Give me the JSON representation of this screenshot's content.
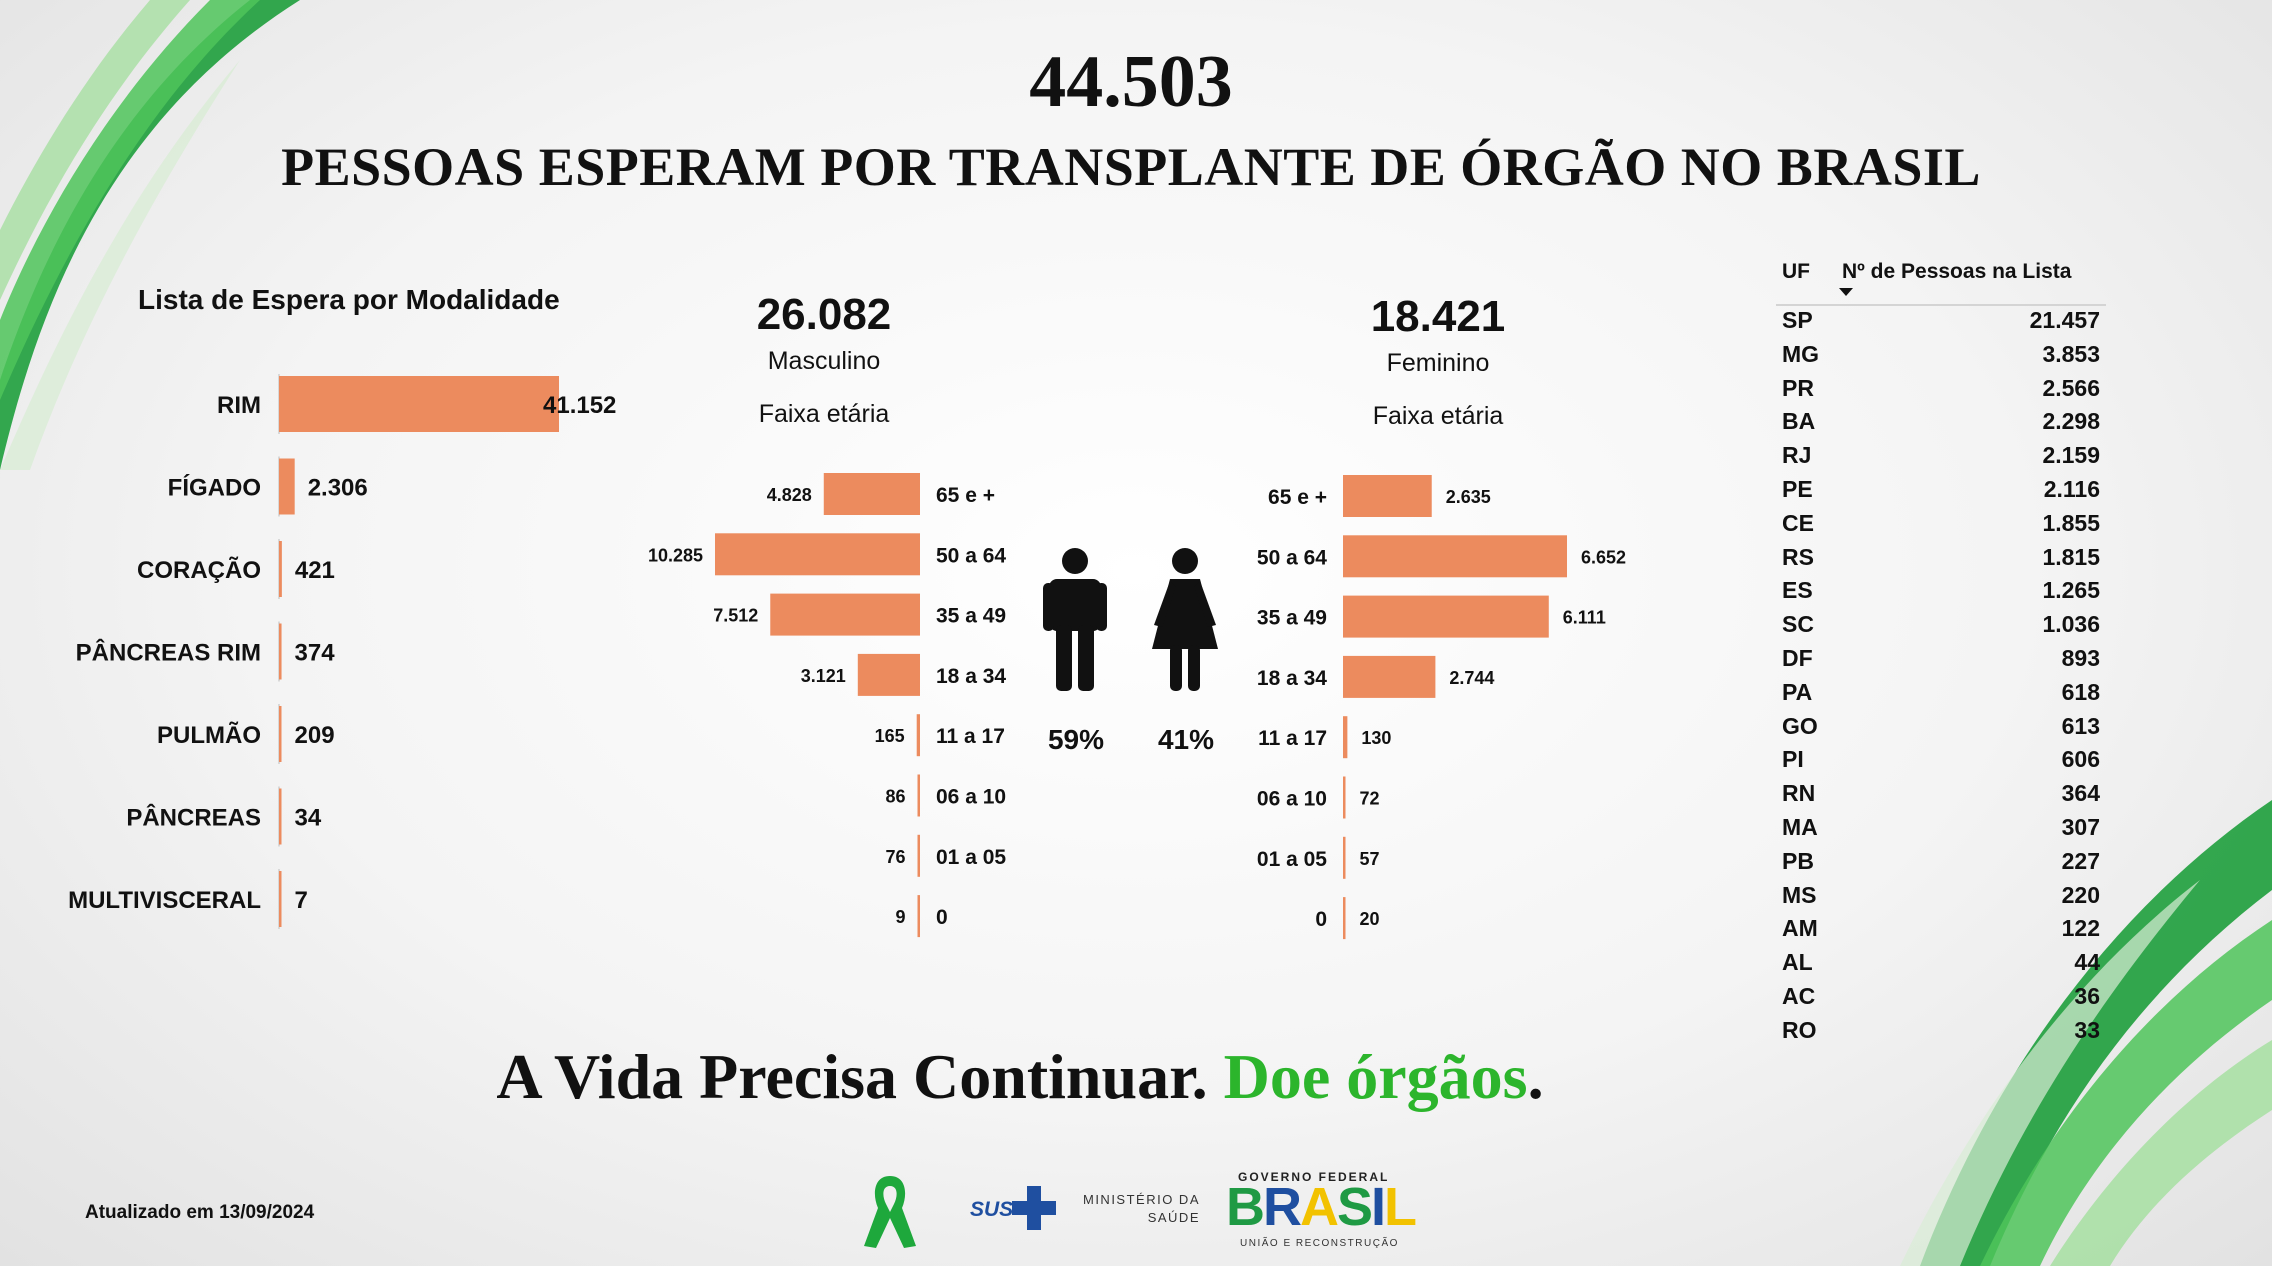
{
  "header": {
    "total": "44.503",
    "subtitle": "PESSOAS ESPERAM POR TRANSPLANTE DE ÓRGÃO NO BRASIL"
  },
  "modalidade": {
    "title": "Lista de Espera por Modalidade"
  },
  "masculino": {
    "total": "26.082",
    "label": "Masculino",
    "faixa_label": "Faixa etária",
    "percent": "59%"
  },
  "feminino": {
    "total": "18.421",
    "label": "Feminino",
    "faixa_label": "Faixa etária",
    "percent": "41%"
  },
  "uf_table": {
    "col_uf": "UF",
    "col_count": "Nº de Pessoas na Lista"
  },
  "footer": {
    "motto_main": "A Vida Precisa Continuar.",
    "motto_green": "Doe órgãos",
    "motto_end": ".",
    "updated": "Atualizado em 13/09/2024",
    "sus": "SUS",
    "ministerio_line1": "MINISTÉRIO DA",
    "ministerio_line2": "SAÚDE",
    "gov_line1": "GOVERNO FEDERAL",
    "gov_brasil": "BRASIL",
    "gov_line2": "UNIÃO E RECONSTRUÇÃO"
  },
  "colors": {
    "bar": "#ec8b5e",
    "accent_green": "#2cb52c",
    "dark_green": "#1d8a3a",
    "text": "#111111"
  },
  "icons": {
    "male": "man-icon",
    "female": "woman-icon",
    "ribbon": "green-ribbon-icon",
    "sus_cross": "sus-cross-icon"
  },
  "chart_data": [
    {
      "type": "bar",
      "orientation": "horizontal",
      "title": "Lista de Espera por Modalidade",
      "categories": [
        "RIM",
        "FÍGADO",
        "CORAÇÃO",
        "PÂNCREAS RIM",
        "PULMÃO",
        "PÂNCREAS",
        "MULTIVISCERAL"
      ],
      "values": [
        41152,
        2306,
        421,
        374,
        209,
        34,
        7
      ],
      "labels": [
        "41.152",
        "2.306",
        "421",
        "374",
        "209",
        "34",
        "7"
      ]
    },
    {
      "type": "bar",
      "orientation": "horizontal",
      "title": "Masculino",
      "categories": [
        "65 e +",
        "50 a 64",
        "35 a 49",
        "18 a 34",
        "11 a 17",
        "06 a 10",
        "01 a 05",
        "0"
      ],
      "values": [
        4828,
        10285,
        7512,
        3121,
        165,
        86,
        76,
        9
      ],
      "labels": [
        "4.828",
        "10.285",
        "7.512",
        "3.121",
        "165",
        "86",
        "76",
        "9"
      ]
    },
    {
      "type": "bar",
      "orientation": "horizontal",
      "title": "Feminino",
      "categories": [
        "65 e +",
        "50 a 64",
        "35 a 49",
        "18 a 34",
        "11 a 17",
        "06 a 10",
        "01 a 05",
        "0"
      ],
      "values": [
        2635,
        6652,
        6111,
        2744,
        130,
        72,
        57,
        20
      ],
      "labels": [
        "2.635",
        "6.652",
        "6.111",
        "2.744",
        "130",
        "72",
        "57",
        "20"
      ]
    },
    {
      "type": "table",
      "title": "",
      "columns": [
        "UF",
        "Nº de Pessoas na Lista"
      ],
      "rows": [
        [
          "SP",
          "21.457"
        ],
        [
          "MG",
          "3.853"
        ],
        [
          "PR",
          "2.566"
        ],
        [
          "BA",
          "2.298"
        ],
        [
          "RJ",
          "2.159"
        ],
        [
          "PE",
          "2.116"
        ],
        [
          "CE",
          "1.855"
        ],
        [
          "RS",
          "1.815"
        ],
        [
          "ES",
          "1.265"
        ],
        [
          "SC",
          "1.036"
        ],
        [
          "DF",
          "893"
        ],
        [
          "PA",
          "618"
        ],
        [
          "GO",
          "613"
        ],
        [
          "PI",
          "606"
        ],
        [
          "RN",
          "364"
        ],
        [
          "MA",
          "307"
        ],
        [
          "PB",
          "227"
        ],
        [
          "MS",
          "220"
        ],
        [
          "AM",
          "122"
        ],
        [
          "AL",
          "44"
        ],
        [
          "AC",
          "36"
        ],
        [
          "RO",
          "33"
        ]
      ]
    }
  ]
}
